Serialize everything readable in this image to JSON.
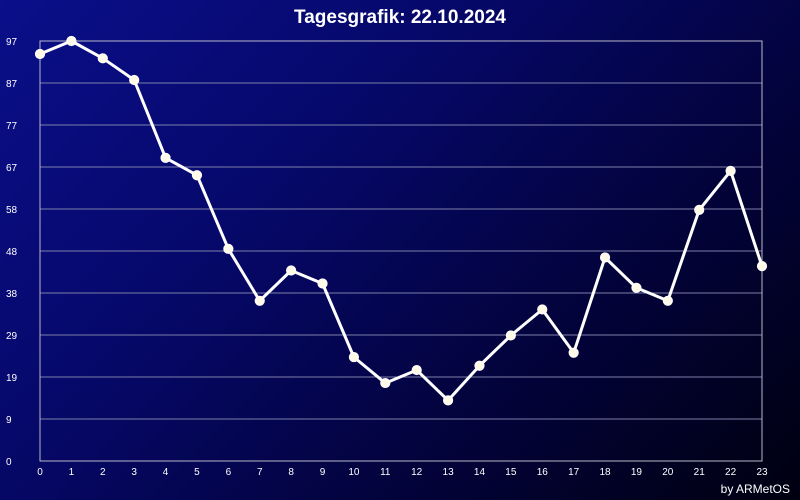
{
  "chart_data": {
    "type": "line",
    "title": "Tagesgrafik: 22.10.2024",
    "credit": "by ARMetOS",
    "x": [
      "0",
      "1",
      "2",
      "3",
      "4",
      "5",
      "6",
      "7",
      "8",
      "9",
      "10",
      "11",
      "12",
      "13",
      "14",
      "15",
      "16",
      "17",
      "18",
      "19",
      "20",
      "21",
      "22",
      "23"
    ],
    "series": [
      {
        "values": [
          94,
          97,
          93,
          88,
          70,
          66,
          49,
          37,
          44,
          41,
          24,
          18,
          21,
          14,
          22,
          29,
          35,
          25,
          47,
          40,
          37,
          58,
          67,
          45
        ]
      }
    ],
    "yticks": [
      "0",
      "9",
      "19",
      "29",
      "38",
      "48",
      "58",
      "67",
      "77",
      "87",
      "97"
    ],
    "ylim": [
      0,
      97
    ],
    "grid": true,
    "colors": {
      "line": "#ffffff",
      "marker": "#fffbe8",
      "grid": "#7d7fa8"
    }
  }
}
